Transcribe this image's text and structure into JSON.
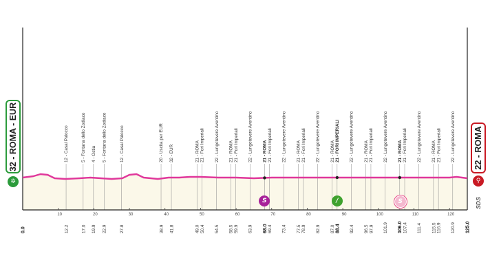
{
  "stage": {
    "start_label": "32 - ROMA - EUR",
    "finish_label": "22 - ROMA",
    "total_km": 125,
    "brand": "SDS",
    "colors": {
      "profile_line": "#e0379b",
      "profile_fill": "#fbf8e9",
      "start": "#2b9b3b",
      "finish": "#c91a24",
      "sprint": "#a8239a",
      "kom": "#3fa22e",
      "final_sprint": "#e84e8b"
    },
    "icons": {
      "start": "start-flag-icon",
      "finish": "finish-flag-icon",
      "sprint": "sprint-icon",
      "kom": "climb-icon",
      "final_sprint": "final-sprint-icon"
    }
  },
  "km_ticks": [
    "10",
    "20",
    "30",
    "40",
    "50",
    "60",
    "70",
    "80",
    "90",
    "100",
    "110",
    "120"
  ],
  "waypoints": [
    {
      "km": 0.0,
      "km_label": "0.0",
      "name": "",
      "bold": true
    },
    {
      "km": 12.2,
      "km_label": "12.2",
      "name": "12 - Casal Palocco"
    },
    {
      "km": 17.0,
      "km_label": "17.0",
      "name": "5 - Fontana dello Zodiaco"
    },
    {
      "km": 19.9,
      "km_label": "19.9",
      "name": "4 - Ostia"
    },
    {
      "km": 22.9,
      "km_label": "22.9",
      "name": "5 - Fontana dello Zodiaco"
    },
    {
      "km": 27.8,
      "km_label": "27.8",
      "name": "12 - Casal Palocco"
    },
    {
      "km": 38.9,
      "km_label": "38.9",
      "name": "20 - Uscita per EUR"
    },
    {
      "km": 41.8,
      "km_label": "41.8",
      "name": "32 - EUR"
    },
    {
      "km": 49.0,
      "km_label": "49.0",
      "name": "21 - ROMA"
    },
    {
      "km": 50.4,
      "km_label": "50.4",
      "name": "21 - Fori Imperiali"
    },
    {
      "km": 54.5,
      "km_label": "54.5",
      "name": "22 - Lungotevere Aventino"
    },
    {
      "km": 58.5,
      "km_label": "58.5",
      "name": "21 - ROMA"
    },
    {
      "km": 59.9,
      "km_label": "59.9",
      "name": "21 - Fori Imperiali"
    },
    {
      "km": 63.9,
      "km_label": "63.9",
      "name": "22 - Lungotevere Aventino"
    },
    {
      "km": 68.0,
      "km_label": "68.0",
      "name": "21 - ROMA",
      "bold": true
    },
    {
      "km": 69.4,
      "km_label": "69.4",
      "name": "21 - Fori Imperiali"
    },
    {
      "km": 73.4,
      "km_label": "73.4",
      "name": "22 - Lungotevere Aventino"
    },
    {
      "km": 77.5,
      "km_label": "77.5",
      "name": "21 - ROMA"
    },
    {
      "km": 78.9,
      "km_label": "78.9",
      "name": "21 - Fori Imperiali"
    },
    {
      "km": 82.9,
      "km_label": "82.9",
      "name": "22 - Lungotevere Aventino"
    },
    {
      "km": 87.0,
      "km_label": "87.0",
      "name": "21 - ROMA"
    },
    {
      "km": 88.4,
      "km_label": "88.4",
      "name": "21 - FORI IMPERIALI",
      "bold": true
    },
    {
      "km": 92.4,
      "km_label": "92.4",
      "name": "22 - Lungotevere Aventino"
    },
    {
      "km": 96.5,
      "km_label": "96.5",
      "name": "21 - ROMA"
    },
    {
      "km": 97.9,
      "km_label": "97.9",
      "name": "21 - Fori Imperiali"
    },
    {
      "km": 101.9,
      "km_label": "101.9",
      "name": "22 - Lungotevere Aventino"
    },
    {
      "km": 106.0,
      "km_label": "106.0",
      "name": "21 - ROMA",
      "bold": true
    },
    {
      "km": 107.4,
      "km_label": "107.4",
      "name": "21 - Fori Imperiali"
    },
    {
      "km": 111.4,
      "km_label": "111.4",
      "name": "22 - Lungotevere Aventino"
    },
    {
      "km": 115.5,
      "km_label": "115.5",
      "name": "21 - ROMA"
    },
    {
      "km": 116.9,
      "km_label": "116.9",
      "name": "21 - Fori Imperiali"
    },
    {
      "km": 120.9,
      "km_label": "120.9",
      "name": "22 - Lungotevere Aventino"
    },
    {
      "km": 125.0,
      "km_label": "125.0",
      "name": "",
      "bold": true
    }
  ],
  "markers": [
    {
      "km": 68.0,
      "type": "sprint",
      "symbol": "S"
    },
    {
      "km": 88.4,
      "type": "kom",
      "symbol": "/"
    },
    {
      "km": 106.0,
      "type": "final_sprint",
      "symbol": "S"
    }
  ]
}
